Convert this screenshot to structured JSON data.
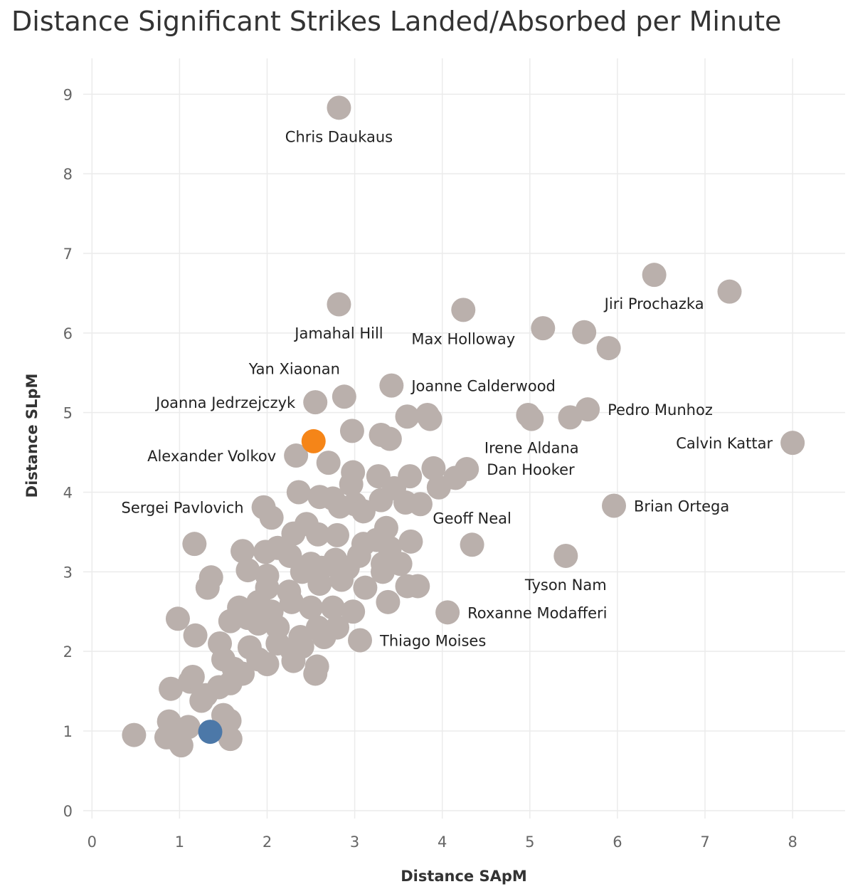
{
  "chart_data": {
    "type": "scatter",
    "title": "Distance Significant Strikes Landed/Absorbed per Minute",
    "xlabel": "Distance SApM",
    "ylabel": "Distance SLpM",
    "xlim": [
      -0.1,
      8.6
    ],
    "ylim": [
      -0.1,
      9.45
    ],
    "xticks": [
      0,
      1,
      2,
      3,
      4,
      5,
      6,
      7,
      8
    ],
    "yticks": [
      0,
      1,
      2,
      3,
      4,
      5,
      6,
      7,
      8,
      9
    ],
    "grid": true,
    "colors": {
      "default": "#bab0ac",
      "highlight_orange": "#f58518",
      "highlight_blue": "#4c78a8"
    },
    "labeled_points": [
      {
        "name": "Chris Daukaus",
        "x": 2.82,
        "y": 8.83,
        "label_pos": "below"
      },
      {
        "name": "Jiri Prochazka",
        "x": 6.42,
        "y": 6.73,
        "label_pos": "below"
      },
      {
        "name": "Jamahal Hill",
        "x": 2.82,
        "y": 6.36,
        "label_pos": "below"
      },
      {
        "name": "Max Holloway",
        "x": 4.24,
        "y": 6.29,
        "label_pos": "below"
      },
      {
        "name": "Yan Xiaonan",
        "x": 2.88,
        "y": 5.2,
        "label_pos": "above-left"
      },
      {
        "name": "Joanne Calderwood",
        "x": 3.42,
        "y": 5.34,
        "label_pos": "right"
      },
      {
        "name": "Joanna Jedrzejczyk",
        "x": 2.55,
        "y": 5.13,
        "label_pos": "left"
      },
      {
        "name": "Pedro Munhoz",
        "x": 5.66,
        "y": 5.04,
        "label_pos": "right"
      },
      {
        "name": "Irene Aldana",
        "x": 5.02,
        "y": 4.92,
        "label_pos": "below"
      },
      {
        "name": "Calvin Kattar",
        "x": 8.0,
        "y": 4.62,
        "label_pos": "left"
      },
      {
        "name": "Alexander Volkov",
        "x": 2.33,
        "y": 4.46,
        "label_pos": "left"
      },
      {
        "name": "Dan Hooker",
        "x": 4.28,
        "y": 4.29,
        "label_pos": "right"
      },
      {
        "name": "Sergei Pavlovich",
        "x": 1.96,
        "y": 3.81,
        "label_pos": "left"
      },
      {
        "name": "Brian Ortega",
        "x": 5.96,
        "y": 3.83,
        "label_pos": "right"
      },
      {
        "name": "Geoff Neal",
        "x": 4.34,
        "y": 3.34,
        "label_pos": "above"
      },
      {
        "name": "Tyson Nam",
        "x": 5.41,
        "y": 3.2,
        "label_pos": "below"
      },
      {
        "name": "Roxanne Modafferi",
        "x": 4.06,
        "y": 2.49,
        "label_pos": "right"
      },
      {
        "name": "Thiago Moises",
        "x": 3.06,
        "y": 2.14,
        "label_pos": "right"
      }
    ],
    "highlight_points": [
      {
        "x": 2.53,
        "y": 4.64,
        "color": "#f58518"
      },
      {
        "x": 1.35,
        "y": 0.99,
        "color": "#4c78a8"
      }
    ],
    "points": [
      [
        5.15,
        6.06
      ],
      [
        5.62,
        6.01
      ],
      [
        5.9,
        5.81
      ],
      [
        7.28,
        6.52
      ],
      [
        4.98,
        4.97
      ],
      [
        5.46,
        4.94
      ],
      [
        3.6,
        4.95
      ],
      [
        3.83,
        4.97
      ],
      [
        3.86,
        4.92
      ],
      [
        2.97,
        4.77
      ],
      [
        3.3,
        4.72
      ],
      [
        3.4,
        4.67
      ],
      [
        2.7,
        4.37
      ],
      [
        2.98,
        4.25
      ],
      [
        3.27,
        4.2
      ],
      [
        3.63,
        4.2
      ],
      [
        3.9,
        4.3
      ],
      [
        4.15,
        4.18
      ],
      [
        2.96,
        4.1
      ],
      [
        3.45,
        4.05
      ],
      [
        3.96,
        4.06
      ],
      [
        2.36,
        4.0
      ],
      [
        2.6,
        3.94
      ],
      [
        2.75,
        3.92
      ],
      [
        3.0,
        3.85
      ],
      [
        3.1,
        3.76
      ],
      [
        3.3,
        3.9
      ],
      [
        3.58,
        3.87
      ],
      [
        3.75,
        3.85
      ],
      [
        2.83,
        3.82
      ],
      [
        2.05,
        3.68
      ],
      [
        2.45,
        3.6
      ],
      [
        2.58,
        3.47
      ],
      [
        2.8,
        3.46
      ],
      [
        3.36,
        3.55
      ],
      [
        3.64,
        3.38
      ],
      [
        2.3,
        3.48
      ],
      [
        1.17,
        3.35
      ],
      [
        1.72,
        3.26
      ],
      [
        1.98,
        3.25
      ],
      [
        2.12,
        3.3
      ],
      [
        2.26,
        3.2
      ],
      [
        2.5,
        3.1
      ],
      [
        2.78,
        3.15
      ],
      [
        3.1,
        3.35
      ],
      [
        3.25,
        3.4
      ],
      [
        3.4,
        3.3
      ],
      [
        1.78,
        3.02
      ],
      [
        2.0,
        2.95
      ],
      [
        2.4,
        3.0
      ],
      [
        2.62,
        3.05
      ],
      [
        2.92,
        3.05
      ],
      [
        3.05,
        3.2
      ],
      [
        3.32,
        3.1
      ],
      [
        3.52,
        3.1
      ],
      [
        3.32,
        3.0
      ],
      [
        1.36,
        2.93
      ],
      [
        1.32,
        2.8
      ],
      [
        2.0,
        2.8
      ],
      [
        2.25,
        2.75
      ],
      [
        2.6,
        2.85
      ],
      [
        2.85,
        2.9
      ],
      [
        3.12,
        2.8
      ],
      [
        3.6,
        2.82
      ],
      [
        3.72,
        2.82
      ],
      [
        1.68,
        2.55
      ],
      [
        1.78,
        2.42
      ],
      [
        1.9,
        2.62
      ],
      [
        2.05,
        2.5
      ],
      [
        2.28,
        2.62
      ],
      [
        2.5,
        2.55
      ],
      [
        2.75,
        2.55
      ],
      [
        2.98,
        2.5
      ],
      [
        3.38,
        2.62
      ],
      [
        0.98,
        2.41
      ],
      [
        1.58,
        2.38
      ],
      [
        1.9,
        2.35
      ],
      [
        2.12,
        2.3
      ],
      [
        2.38,
        2.18
      ],
      [
        2.58,
        2.3
      ],
      [
        2.8,
        2.3
      ],
      [
        1.18,
        2.2
      ],
      [
        1.46,
        2.1
      ],
      [
        1.8,
        2.05
      ],
      [
        2.12,
        2.1
      ],
      [
        2.4,
        2.06
      ],
      [
        2.65,
        2.18
      ],
      [
        2.28,
        2.02
      ],
      [
        1.5,
        1.9
      ],
      [
        1.62,
        1.78
      ],
      [
        1.72,
        1.72
      ],
      [
        1.9,
        1.9
      ],
      [
        2.0,
        1.84
      ],
      [
        2.3,
        1.88
      ],
      [
        2.57,
        1.81
      ],
      [
        2.55,
        1.72
      ],
      [
        0.9,
        1.53
      ],
      [
        1.12,
        1.62
      ],
      [
        1.15,
        1.68
      ],
      [
        1.3,
        1.45
      ],
      [
        1.45,
        1.55
      ],
      [
        1.58,
        1.6
      ],
      [
        1.25,
        1.38
      ],
      [
        0.88,
        1.12
      ],
      [
        1.1,
        1.05
      ],
      [
        1.5,
        1.2
      ],
      [
        1.57,
        1.13
      ],
      [
        0.48,
        0.95
      ],
      [
        0.85,
        0.92
      ],
      [
        1.02,
        0.82
      ],
      [
        1.58,
        0.9
      ],
      [
        0.98,
        0.88
      ]
    ]
  }
}
